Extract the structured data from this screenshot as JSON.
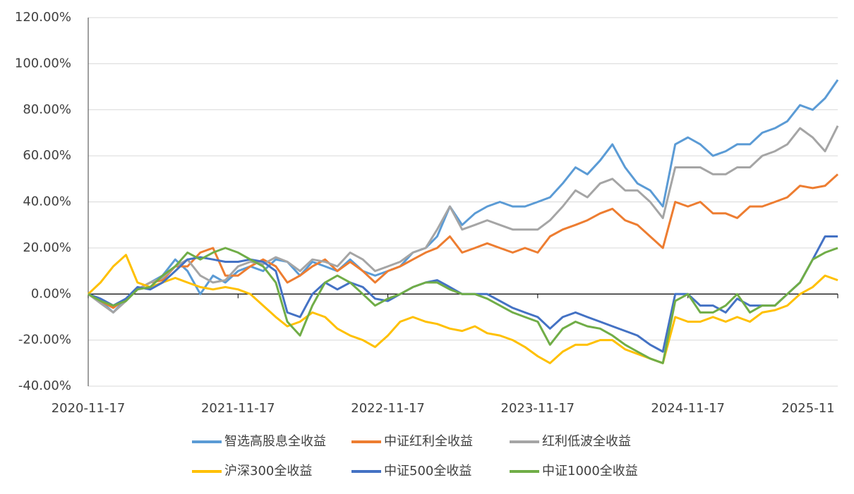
{
  "chart_data": {
    "type": "line",
    "x": [
      "2020-11-17",
      "2020-12-17",
      "2021-01-17",
      "2021-02-17",
      "2021-03-17",
      "2021-04-17",
      "2021-05-17",
      "2021-06-17",
      "2021-07-17",
      "2021-08-17",
      "2021-09-17",
      "2021-10-17",
      "2021-11-17",
      "2021-12-17",
      "2022-01-17",
      "2022-02-17",
      "2022-03-17",
      "2022-04-17",
      "2022-05-17",
      "2022-06-17",
      "2022-07-17",
      "2022-08-17",
      "2022-09-17",
      "2022-10-17",
      "2022-11-17",
      "2022-12-17",
      "2023-01-17",
      "2023-02-17",
      "2023-03-17",
      "2023-04-17",
      "2023-05-17",
      "2023-06-17",
      "2023-07-17",
      "2023-08-17",
      "2023-09-17",
      "2023-10-17",
      "2023-11-17",
      "2023-12-17",
      "2024-01-17",
      "2024-02-17",
      "2024-03-17",
      "2024-04-17",
      "2024-05-17",
      "2024-06-17",
      "2024-07-17",
      "2024-08-17",
      "2024-09-17",
      "2024-10-17",
      "2024-11-17",
      "2024-12-17",
      "2025-01-17",
      "2025-02-17",
      "2025-03-17",
      "2025-04-17",
      "2025-05-17",
      "2025-06-17",
      "2025-07-17",
      "2025-08-17",
      "2025-09-17",
      "2025-10-17",
      "2025-11-17"
    ],
    "xlim": [
      "2020-11-17",
      "2025-11-17"
    ],
    "xticks": [
      {
        "value": "2020-11-17",
        "label": "2020-11-17"
      },
      {
        "value": "2021-11-17",
        "label": "2021-11-17"
      },
      {
        "value": "2022-11-17",
        "label": "2022-11-17"
      },
      {
        "value": "2023-11-17",
        "label": "2023-11-17"
      },
      {
        "value": "2024-11-17",
        "label": "2024-11-17"
      },
      {
        "value": "2025-11-17",
        "label": "2025-11"
      }
    ],
    "ylim": [
      -40,
      120
    ],
    "yticks": [
      {
        "value": -40,
        "label": "-40.00%"
      },
      {
        "value": -20,
        "label": "-20.00%"
      },
      {
        "value": 0,
        "label": "0.00%"
      },
      {
        "value": 20,
        "label": "20.00%"
      },
      {
        "value": 40,
        "label": "40.00%"
      },
      {
        "value": 60,
        "label": "60.00%"
      },
      {
        "value": 80,
        "label": "80.00%"
      },
      {
        "value": 100,
        "label": "100.00%"
      },
      {
        "value": 120,
        "label": "120.00%"
      }
    ],
    "grid": true,
    "legend": "bottom",
    "series": [
      {
        "name": "智选高股息全收益",
        "color": "#5b9bd5",
        "values": [
          0,
          -3,
          -8,
          -2,
          2,
          5,
          8,
          15,
          10,
          0,
          8,
          5,
          10,
          12,
          10,
          15,
          14,
          8,
          14,
          12,
          10,
          15,
          10,
          8,
          10,
          12,
          18,
          20,
          25,
          38,
          30,
          35,
          38,
          40,
          38,
          38,
          40,
          42,
          48,
          55,
          52,
          58,
          65,
          55,
          48,
          45,
          38,
          65,
          68,
          65,
          60,
          62,
          65,
          65,
          70,
          72,
          75,
          82,
          80,
          85,
          93
        ]
      },
      {
        "name": "中证红利全收益",
        "color": "#ed7d31",
        "values": [
          0,
          -3,
          -6,
          -2,
          2,
          5,
          6,
          12,
          12,
          18,
          20,
          8,
          8,
          12,
          15,
          12,
          5,
          8,
          12,
          15,
          10,
          14,
          10,
          5,
          10,
          12,
          15,
          18,
          20,
          25,
          18,
          20,
          22,
          20,
          18,
          20,
          18,
          25,
          28,
          30,
          32,
          35,
          37,
          32,
          30,
          25,
          20,
          40,
          38,
          40,
          35,
          35,
          33,
          38,
          38,
          40,
          42,
          47,
          46,
          47,
          52
        ]
      },
      {
        "name": "红利低波全收益",
        "color": "#a5a5a5",
        "values": [
          0,
          -4,
          -8,
          -3,
          2,
          5,
          7,
          12,
          15,
          8,
          5,
          6,
          12,
          14,
          13,
          16,
          14,
          10,
          15,
          14,
          12,
          18,
          15,
          10,
          12,
          14,
          18,
          20,
          28,
          38,
          28,
          30,
          32,
          30,
          28,
          28,
          28,
          32,
          38,
          45,
          42,
          48,
          50,
          45,
          45,
          40,
          33,
          55,
          55,
          55,
          52,
          52,
          55,
          55,
          60,
          62,
          65,
          72,
          68,
          62,
          73
        ]
      },
      {
        "name": "沪深300全收益",
        "color": "#ffc000",
        "values": [
          0,
          5,
          12,
          17,
          5,
          3,
          5,
          7,
          5,
          3,
          2,
          3,
          2,
          0,
          -5,
          -10,
          -14,
          -12,
          -8,
          -10,
          -15,
          -18,
          -20,
          -23,
          -18,
          -12,
          -10,
          -12,
          -13,
          -15,
          -16,
          -14,
          -17,
          -18,
          -20,
          -23,
          -27,
          -30,
          -25,
          -22,
          -22,
          -20,
          -20,
          -24,
          -26,
          -28,
          -30,
          -10,
          -12,
          -12,
          -10,
          -12,
          -10,
          -12,
          -8,
          -7,
          -5,
          0,
          3,
          8,
          6
        ]
      },
      {
        "name": "中证500全收益",
        "color": "#4472c4",
        "values": [
          0,
          -2,
          -5,
          -2,
          3,
          2,
          5,
          10,
          15,
          16,
          15,
          14,
          14,
          15,
          14,
          10,
          -8,
          -10,
          0,
          5,
          2,
          5,
          3,
          -2,
          -3,
          0,
          3,
          5,
          6,
          3,
          0,
          0,
          0,
          -3,
          -6,
          -8,
          -10,
          -15,
          -10,
          -8,
          -10,
          -12,
          -14,
          -16,
          -18,
          -22,
          -25,
          0,
          0,
          -5,
          -5,
          -8,
          -2,
          -5,
          -5,
          -5,
          0,
          5,
          15,
          25,
          25
        ]
      },
      {
        "name": "中证1000全收益",
        "color": "#70ad47",
        "values": [
          0,
          -3,
          -5,
          -3,
          2,
          3,
          8,
          12,
          18,
          15,
          18,
          20,
          18,
          15,
          12,
          5,
          -12,
          -18,
          -5,
          5,
          8,
          5,
          0,
          -5,
          -2,
          0,
          3,
          5,
          5,
          2,
          0,
          0,
          -2,
          -5,
          -8,
          -10,
          -12,
          -22,
          -15,
          -12,
          -14,
          -15,
          -18,
          -22,
          -25,
          -28,
          -30,
          -3,
          0,
          -8,
          -8,
          -5,
          0,
          -8,
          -5,
          -5,
          0,
          5,
          15,
          18,
          20
        ]
      }
    ]
  }
}
